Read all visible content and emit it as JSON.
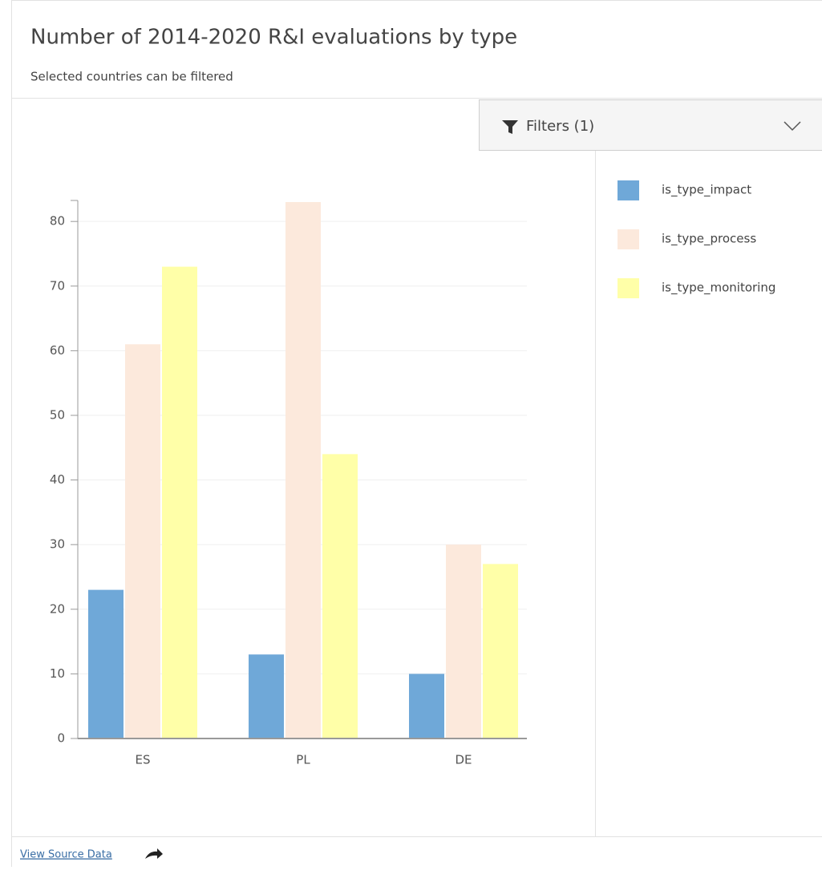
{
  "chart_data": {
    "type": "bar",
    "title": "Number of 2014-2020 R&I evaluations by type",
    "subtitle": "Selected countries can be filtered",
    "categories": [
      "ES",
      "PL",
      "DE"
    ],
    "series": [
      {
        "name": "is_type_impact",
        "color": "#6fa8d8",
        "values": [
          23,
          13,
          10
        ]
      },
      {
        "name": "is_type_process",
        "color": "#fce9dc",
        "values": [
          61,
          83,
          30
        ]
      },
      {
        "name": "is_type_monitoring",
        "color": "#ffffa8",
        "values": [
          73,
          44,
          27
        ]
      }
    ],
    "ylim": [
      0,
      83
    ],
    "yticks": [
      0,
      10,
      20,
      30,
      40,
      50,
      60,
      70,
      80
    ],
    "grid": true
  },
  "ui": {
    "filters_label": "Filters (1)",
    "source_link": "View Source Data"
  }
}
